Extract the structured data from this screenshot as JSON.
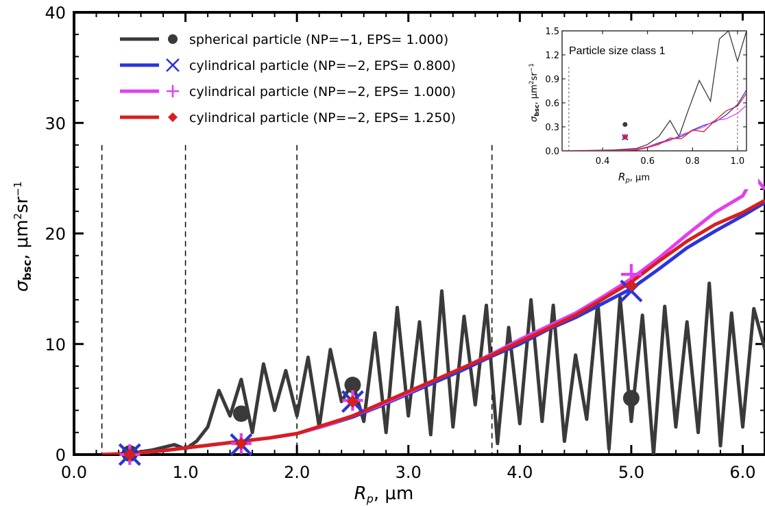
{
  "chart_data": [
    {
      "type": "line",
      "xlabel_main": "R",
      "xlabel_sub": "p",
      "xlabel_unit": ", μm",
      "ylabel_main": "σ",
      "ylabel_sub": "bsc",
      "ylabel_unit": ",  μm",
      "ylabel_unit_sup1": "2",
      "ylabel_unit_mid": "sr",
      "ylabel_unit_sup2": "−1",
      "xlim": [
        0,
        6.2
      ],
      "ylim": [
        0,
        40
      ],
      "x_ticks": [
        "0.0",
        "1.0",
        "2.0",
        "3.0",
        "4.0",
        "5.0",
        "6.0"
      ],
      "y_ticks": [
        "0",
        "10",
        "20",
        "30",
        "40"
      ],
      "size_class_boundaries": [
        0.25,
        1.0,
        2.0,
        3.75
      ],
      "legend": [
        {
          "label": "spherical   particle  (NP=−1,  EPS=  1.000)",
          "color": "#3a3a3a",
          "marker": "circle"
        },
        {
          "label": "cylindrical  particle  (NP=−2,  EPS=  0.800)",
          "color": "#2b35d9",
          "marker": "x"
        },
        {
          "label": "cylindrical  particle  (NP=−2,  EPS=  1.000)",
          "color": "#e23ff0",
          "marker": "plus"
        },
        {
          "label": "cylindrical  particle  (NP=−2,  EPS=  1.250)",
          "color": "#d81e1e",
          "marker": "diamond"
        }
      ],
      "series": [
        {
          "name": "spherical particle (NP=−1, EPS= 1.000)",
          "color": "#3a3a3a",
          "x": [
            0.5,
            0.7,
            0.9,
            1.0,
            1.1,
            1.2,
            1.3,
            1.4,
            1.5,
            1.6,
            1.7,
            1.8,
            1.9,
            2.0,
            2.1,
            2.2,
            2.3,
            2.4,
            2.5,
            2.6,
            2.7,
            2.8,
            2.9,
            3.0,
            3.1,
            3.2,
            3.3,
            3.4,
            3.5,
            3.6,
            3.7,
            3.8,
            3.9,
            4.0,
            4.1,
            4.2,
            4.3,
            4.4,
            4.5,
            4.6,
            4.7,
            4.8,
            4.9,
            5.0,
            5.1,
            5.2,
            5.3,
            5.4,
            5.5,
            5.6,
            5.7,
            5.8,
            5.9,
            6.0,
            6.1,
            6.2
          ],
          "y": [
            0.1,
            0.4,
            0.9,
            0.5,
            1.2,
            2.5,
            5.8,
            3.5,
            6.8,
            2.0,
            8.2,
            4.0,
            7.6,
            3.5,
            8.8,
            2.5,
            9.5,
            4.8,
            6.5,
            3.0,
            11.0,
            2.0,
            13.3,
            3.5,
            12.0,
            1.8,
            14.8,
            2.5,
            12.5,
            4.5,
            13.5,
            1.0,
            11.5,
            2.8,
            14.0,
            3.0,
            13.5,
            1.2,
            9.0,
            3.2,
            13.8,
            0.5,
            14.2,
            3.0,
            12.6,
            0.0,
            13.4,
            2.5,
            12.0,
            2.0,
            15.5,
            0.8,
            12.8,
            2.5,
            13.2,
            9.5
          ]
        },
        {
          "name": "cylindrical particle (NP=−2, EPS= 0.800)",
          "color": "#2b35d9",
          "x": [
            0.25,
            0.5,
            0.75,
            1.0,
            1.25,
            1.5,
            1.75,
            2.0,
            2.25,
            2.5,
            2.75,
            3.0,
            3.25,
            3.5,
            3.75,
            4.0,
            4.25,
            4.5,
            4.75,
            5.0,
            5.25,
            5.5,
            5.75,
            6.0,
            6.2
          ],
          "y": [
            0.0,
            0.1,
            0.3,
            0.6,
            0.9,
            1.2,
            1.5,
            1.9,
            2.6,
            3.4,
            4.4,
            5.5,
            6.6,
            7.7,
            8.9,
            10.0,
            11.3,
            12.4,
            13.7,
            15.0,
            16.8,
            18.7,
            20.2,
            21.6,
            22.8
          ]
        },
        {
          "name": "cylindrical particle (NP=−2, EPS= 1.000)",
          "color": "#e23ff0",
          "x": [
            0.25,
            0.5,
            0.75,
            1.0,
            1.25,
            1.5,
            1.75,
            2.0,
            2.25,
            2.5,
            2.75,
            3.0,
            3.25,
            3.5,
            3.75,
            4.0,
            4.25,
            4.5,
            4.75,
            5.0,
            5.25,
            5.5,
            5.75,
            6.0,
            6.1,
            6.2
          ],
          "y": [
            0.0,
            0.1,
            0.3,
            0.6,
            0.9,
            1.2,
            1.5,
            1.9,
            2.6,
            3.5,
            4.5,
            5.6,
            6.8,
            7.9,
            9.1,
            10.4,
            11.6,
            12.8,
            14.3,
            15.9,
            17.8,
            19.9,
            21.9,
            23.4,
            25.2,
            24.0
          ]
        },
        {
          "name": "cylindrical particle (NP=−2, EPS= 1.250)",
          "color": "#d81e1e",
          "x": [
            0.25,
            0.5,
            0.75,
            1.0,
            1.25,
            1.5,
            1.75,
            2.0,
            2.25,
            2.5,
            2.75,
            3.0,
            3.25,
            3.5,
            3.75,
            4.0,
            4.25,
            4.5,
            4.75,
            5.0,
            5.25,
            5.5,
            5.75,
            6.0,
            6.2
          ],
          "y": [
            0.0,
            0.1,
            0.3,
            0.6,
            0.9,
            1.2,
            1.5,
            1.9,
            2.7,
            3.5,
            4.6,
            5.7,
            6.8,
            7.9,
            9.0,
            10.2,
            11.4,
            12.6,
            14.1,
            15.6,
            17.5,
            19.3,
            20.8,
            21.9,
            23.0
          ]
        }
      ],
      "markers": [
        {
          "series": 0,
          "x": [
            0.5,
            1.5,
            2.5,
            5.0
          ],
          "y": [
            0.1,
            3.7,
            6.3,
            5.1
          ]
        },
        {
          "series": 1,
          "x": [
            0.5,
            1.5,
            2.5,
            5.0
          ],
          "y": [
            0.0,
            0.9,
            4.8,
            14.8
          ]
        },
        {
          "series": 2,
          "x": [
            0.5,
            1.5,
            2.5,
            5.0
          ],
          "y": [
            0.0,
            1.0,
            4.9,
            16.3
          ]
        },
        {
          "series": 3,
          "x": [
            0.5,
            1.5,
            2.5,
            5.0
          ],
          "y": [
            0.0,
            1.0,
            4.8,
            15.3
          ]
        }
      ]
    },
    {
      "type": "line",
      "title": "Particle size class 1",
      "xlabel_main": "R",
      "xlabel_sub": "p",
      "xlabel_unit": ", μm",
      "ylabel_main": "σ",
      "ylabel_sub": "bsc",
      "ylabel_unit": ", μm",
      "ylabel_unit_sup1": "2",
      "ylabel_unit_mid": "sr",
      "ylabel_unit_sup2": "−1",
      "xlim": [
        0.22,
        1.04
      ],
      "ylim": [
        0,
        1.5
      ],
      "x_ticks": [
        "0.4",
        "0.6",
        "0.8",
        "1.0"
      ],
      "y_ticks": [
        "0.0",
        "0.3",
        "0.6",
        "0.9",
        "1.2",
        "1.5"
      ],
      "size_class_boundaries": [
        0.25,
        1.0
      ],
      "series": [
        {
          "name": "spherical particle (NP=−1, EPS= 1.000)",
          "color": "#3a3a3a",
          "x": [
            0.22,
            0.45,
            0.55,
            0.6,
            0.65,
            0.7,
            0.74,
            0.78,
            0.83,
            0.88,
            0.92,
            0.96,
            1.0,
            1.04
          ],
          "y": [
            0.0,
            0.01,
            0.03,
            0.08,
            0.18,
            0.38,
            0.18,
            0.5,
            0.88,
            0.62,
            1.4,
            1.5,
            1.12,
            1.5
          ]
        },
        {
          "name": "cylindrical particle (NP=−2, EPS= 0.800)",
          "color": "#2b35d9",
          "x": [
            0.22,
            0.45,
            0.55,
            0.6,
            0.65,
            0.7,
            0.75,
            0.8,
            0.85,
            0.9,
            0.95,
            1.0,
            1.04
          ],
          "y": [
            0.0,
            0.0,
            0.02,
            0.05,
            0.1,
            0.14,
            0.18,
            0.26,
            0.32,
            0.36,
            0.45,
            0.58,
            0.76
          ]
        },
        {
          "name": "cylindrical particle (NP=−2, EPS= 1.000)",
          "color": "#e23ff0",
          "x": [
            0.22,
            0.45,
            0.55,
            0.6,
            0.65,
            0.7,
            0.75,
            0.8,
            0.85,
            0.9,
            0.95,
            1.0,
            1.04
          ],
          "y": [
            0.0,
            0.0,
            0.02,
            0.05,
            0.09,
            0.13,
            0.2,
            0.25,
            0.3,
            0.38,
            0.4,
            0.47,
            0.57
          ]
        },
        {
          "name": "cylindrical particle (NP=−2, EPS= 1.250)",
          "color": "#d81e1e",
          "x": [
            0.22,
            0.45,
            0.55,
            0.6,
            0.65,
            0.7,
            0.75,
            0.8,
            0.85,
            0.9,
            0.95,
            1.0,
            1.04
          ],
          "y": [
            0.0,
            0.0,
            0.01,
            0.04,
            0.08,
            0.16,
            0.15,
            0.26,
            0.24,
            0.38,
            0.5,
            0.56,
            0.72
          ]
        }
      ],
      "markers": [
        {
          "series": 0,
          "x": [
            0.5
          ],
          "y": [
            0.33
          ]
        },
        {
          "series": 1,
          "x": [
            0.5
          ],
          "y": [
            0.17
          ]
        },
        {
          "series": 2,
          "x": [
            0.5
          ],
          "y": [
            0.18
          ]
        },
        {
          "series": 3,
          "x": [
            0.5
          ],
          "y": [
            0.17
          ]
        }
      ]
    }
  ]
}
